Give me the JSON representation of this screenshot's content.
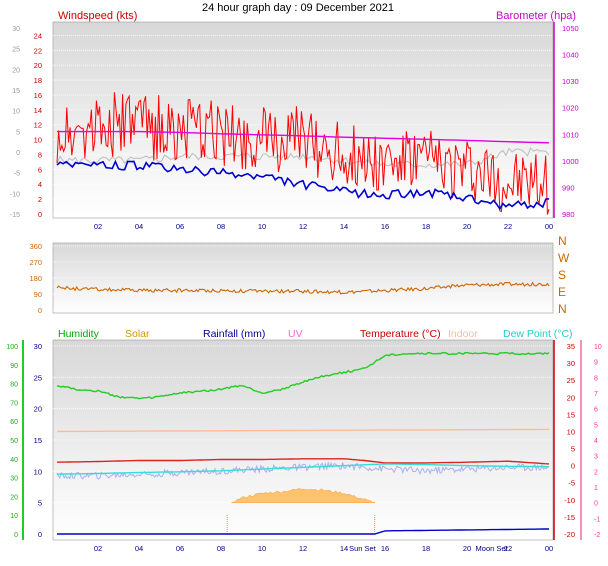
{
  "title": "24 hour graph day : 09 December 2021",
  "chart_data": [
    {
      "id": "wind_baro",
      "type": "line",
      "legend": {
        "wind": "Windspeed (kts)",
        "baro": "Barometer (hpa)"
      },
      "x_ticks": [
        "02",
        "04",
        "06",
        "08",
        "10",
        "12",
        "14",
        "16",
        "18",
        "20",
        "22",
        "00"
      ],
      "left_axis_outer": {
        "range": [
          -15,
          30
        ],
        "ticks": [
          -15,
          -10,
          -5,
          0,
          5,
          10,
          15,
          20,
          25,
          30
        ]
      },
      "left_axis_inner": {
        "range": [
          0,
          25
        ],
        "ticks": [
          0,
          2,
          4,
          6,
          8,
          10,
          12,
          14,
          16,
          18,
          20,
          22,
          24
        ]
      },
      "right_axis": {
        "range": [
          980,
          1050
        ],
        "ticks": [
          980,
          990,
          1000,
          1010,
          1020,
          1030,
          1040,
          1050
        ]
      },
      "series": [
        {
          "name": "Windspeed (kts)",
          "color": "#ff0000",
          "x": [
            0,
            2,
            4,
            6,
            8,
            10,
            12,
            14,
            16,
            18,
            20,
            22,
            24
          ],
          "y": [
            11,
            12,
            12,
            11,
            11,
            10,
            10,
            8,
            7,
            7,
            6,
            4,
            4
          ],
          "noise": 4.5
        },
        {
          "name": "Windspeed (kts)",
          "color": "#0000cc",
          "x": [
            0,
            2,
            4,
            6,
            8,
            10,
            12,
            14,
            16,
            18,
            20,
            22,
            24
          ],
          "y": [
            7,
            6.5,
            6.5,
            6,
            5.5,
            5,
            4,
            3,
            2.5,
            3,
            2,
            1,
            1.5
          ],
          "noise": 0.6
        },
        {
          "name": "",
          "color": "#c0c0c0",
          "x": [
            0,
            2,
            4,
            6,
            8,
            10,
            12,
            14,
            16,
            18,
            20,
            22,
            24
          ],
          "y": [
            -2,
            -2,
            -2,
            -1,
            -1,
            -1,
            -1,
            -2,
            -3,
            -3,
            -3,
            0,
            0
          ],
          "noise": 1
        },
        {
          "name": "Barometer (hpa)",
          "color": "#e000e0",
          "x": [
            0,
            2,
            4,
            6,
            8,
            10,
            12,
            14,
            16,
            18,
            20,
            22,
            24
          ],
          "y": [
            1011,
            1011,
            1011,
            1010.7,
            1010.2,
            1009.8,
            1009.4,
            1008.9,
            1008.5,
            1008.1,
            1007.7,
            1007.2,
            1006.8
          ],
          "noise": 0
        }
      ]
    },
    {
      "id": "wind_dir",
      "type": "line",
      "left_axis": {
        "range": [
          0,
          360
        ],
        "ticks": [
          0,
          90,
          180,
          270,
          360
        ]
      },
      "compass_labels": [
        "N",
        "W",
        "S",
        "E",
        "N"
      ],
      "series": [
        {
          "name": "",
          "color": "#cc6600",
          "x": [
            0,
            2,
            4,
            6,
            8,
            10,
            12,
            14,
            16,
            18,
            20,
            22,
            24
          ],
          "y": [
            125,
            115,
            110,
            110,
            110,
            105,
            105,
            100,
            110,
            120,
            140,
            145,
            145
          ],
          "noise": 10
        }
      ]
    },
    {
      "id": "temp_hum",
      "type": "line",
      "legend": [
        "Humidity",
        "Solar",
        "Rainfall (mm)",
        "UV",
        "Temperature (°C)",
        "Indoor",
        "Dew Point (°C)"
      ],
      "sun_labels": [
        "Sun Set",
        "Moon Set"
      ],
      "x_ticks": [
        "02",
        "04",
        "06",
        "08",
        "10",
        "12",
        "14",
        "16",
        "18",
        "20",
        "22",
        "00"
      ],
      "left_axis_outer": {
        "range": [
          0,
          100
        ],
        "ticks": [
          0,
          10,
          20,
          30,
          40,
          50,
          60,
          70,
          80,
          90,
          100
        ]
      },
      "left_axis_inner": {
        "range": [
          0,
          30
        ],
        "ticks": [
          0,
          5,
          10,
          15,
          20,
          25,
          30
        ]
      },
      "right_axis_inner": {
        "range": [
          -20,
          35
        ],
        "ticks": [
          -20,
          -15,
          -10,
          -5,
          0,
          5,
          10,
          15,
          20,
          25,
          30,
          35
        ]
      },
      "right_axis_outer": {
        "range": [
          -2,
          10
        ],
        "ticks": [
          -2,
          -1,
          0,
          1,
          2,
          3,
          4,
          5,
          6,
          7,
          8,
          9,
          10
        ]
      },
      "series": [
        {
          "name": "Humidity",
          "color": "#22cc22",
          "x": [
            0,
            1,
            2,
            3,
            4,
            5,
            6,
            7,
            8,
            9,
            10,
            11,
            12,
            13,
            14,
            15,
            16,
            17,
            18,
            19,
            20,
            21,
            22,
            23,
            24
          ],
          "y": [
            79,
            77,
            76,
            73,
            72,
            73,
            75,
            76,
            77,
            79,
            75,
            77,
            81,
            84,
            86,
            88,
            95,
            96,
            96,
            96,
            96,
            96,
            96,
            96,
            96
          ],
          "noise": 0.5
        },
        {
          "name": "Temperature (°C)",
          "color": "#dd2222",
          "x": [
            0,
            2,
            4,
            6,
            8,
            10,
            12,
            14,
            15,
            16,
            18,
            20,
            22,
            24
          ],
          "y": [
            1,
            1.2,
            1.5,
            1.5,
            1.8,
            1.8,
            2,
            2,
            1.5,
            0.8,
            0.8,
            1,
            1.3,
            0.5
          ],
          "noise": 0
        },
        {
          "name": "Indoor",
          "color": "#ffbb99",
          "x": [
            0,
            12,
            24
          ],
          "y": [
            10,
            10.3,
            10.6
          ],
          "noise": 0
        },
        {
          "name": "Dew Point (°C)",
          "color": "#33dddd",
          "x": [
            0,
            2,
            4,
            6,
            8,
            10,
            12,
            14,
            16,
            18,
            20,
            22,
            24
          ],
          "y": [
            -2.5,
            -2.3,
            -2,
            -1.8,
            -1.5,
            -1,
            -0.5,
            0,
            0.5,
            0.3,
            0,
            -0.2,
            -0.3
          ],
          "noise": 0
        },
        {
          "name": "",
          "color": "#aab0ee",
          "x": [
            0,
            2,
            4,
            6,
            8,
            10,
            12,
            14,
            16,
            18,
            20,
            22,
            24
          ],
          "y": [
            -3,
            -3,
            -2.5,
            -2,
            -1.5,
            -1,
            -0.5,
            0,
            -1,
            -1.5,
            -1,
            -0.5,
            -0.5
          ],
          "noise": 1
        },
        {
          "name": "Solar",
          "color": "#ffaa33",
          "x": [
            8.5,
            9,
            10,
            11,
            12,
            13,
            14,
            15,
            15.5
          ],
          "y": [
            0,
            0.3,
            0.6,
            0.7,
            0.9,
            0.8,
            0.6,
            0.2,
            0
          ],
          "noise": 0
        },
        {
          "name": "Rainfall (mm)",
          "color": "#0000cc",
          "x": [
            0,
            15.5,
            16,
            24
          ],
          "y": [
            0,
            0,
            0.5,
            0.8
          ],
          "noise": 0
        }
      ]
    }
  ]
}
